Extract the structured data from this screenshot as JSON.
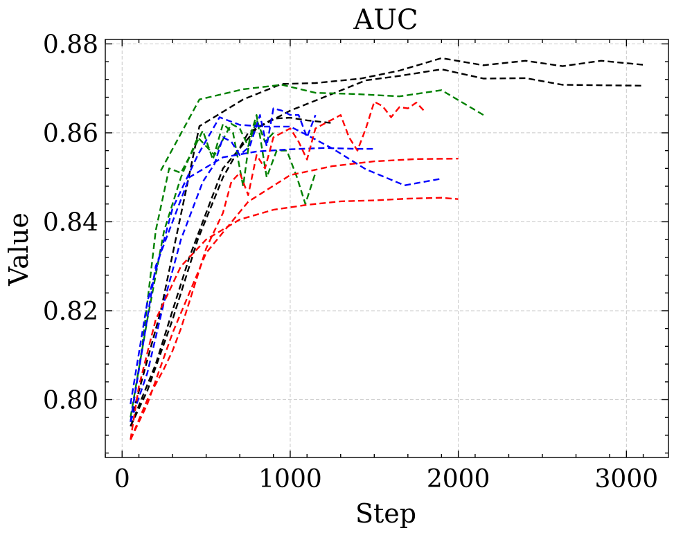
{
  "chart_data": {
    "type": "line",
    "title": "AUC",
    "xlabel": "Step",
    "ylabel": "Value",
    "xlim": [
      -100,
      3250
    ],
    "ylim": [
      0.787,
      0.881
    ],
    "xticks": [
      0,
      1000,
      2000,
      3000
    ],
    "xtick_labels": [
      "0",
      "1000",
      "2000",
      "3000"
    ],
    "yticks": [
      0.8,
      0.82,
      0.84,
      0.86,
      0.88
    ],
    "ytick_labels": [
      "0.80",
      "0.82",
      "0.84",
      "0.86",
      "0.88"
    ],
    "grid": true,
    "linestyle": "dashed",
    "series": [
      {
        "color": "#000000",
        "x": [
          50,
          230,
          460,
          720,
          950,
          1150,
          1420,
          1650,
          1900,
          2150,
          2400,
          2620,
          2850,
          3100
        ],
        "y": [
          0.795,
          0.82,
          0.8615,
          0.8675,
          0.871,
          0.8712,
          0.8722,
          0.874,
          0.8768,
          0.8752,
          0.8762,
          0.875,
          0.8762,
          0.8753
        ]
      },
      {
        "color": "#000000",
        "x": [
          50,
          200,
          400,
          600,
          800,
          1000,
          1200,
          1450,
          1650,
          1900,
          2150,
          2400,
          2620,
          2850,
          3100
        ],
        "y": [
          0.794,
          0.808,
          0.832,
          0.852,
          0.861,
          0.865,
          0.868,
          0.8718,
          0.8728,
          0.8743,
          0.8722,
          0.8723,
          0.8708,
          0.8707,
          0.8706
        ]
      },
      {
        "color": "#000000",
        "x": [
          50,
          150,
          300,
          450,
          600,
          750,
          900,
          1000,
          1100,
          1250
        ],
        "y": [
          0.794,
          0.802,
          0.818,
          0.836,
          0.85,
          0.86,
          0.8632,
          0.8634,
          0.8628,
          0.8622
        ]
      },
      {
        "color": "#008000",
        "x": [
          230,
          460,
          720,
          950,
          1150,
          1400,
          1650,
          1900,
          2150
        ],
        "y": [
          0.8515,
          0.8675,
          0.8698,
          0.8708,
          0.869,
          0.8687,
          0.8682,
          0.8696,
          0.864
        ]
      },
      {
        "color": "#008000",
        "x": [
          50,
          120,
          200,
          280,
          350,
          420,
          480,
          540,
          600,
          660,
          720,
          760,
          800,
          860,
          920,
          980,
          1040,
          1090,
          1150
        ],
        "y": [
          0.795,
          0.812,
          0.838,
          0.852,
          0.851,
          0.856,
          0.8605,
          0.854,
          0.862,
          0.86,
          0.848,
          0.859,
          0.864,
          0.85,
          0.856,
          0.856,
          0.85,
          0.844,
          0.851
        ]
      },
      {
        "color": "#008000",
        "x": [
          50,
          150,
          250,
          350,
          450,
          550,
          650,
          700,
          750,
          800,
          850,
          900
        ],
        "y": [
          0.796,
          0.818,
          0.838,
          0.85,
          0.859,
          0.855,
          0.862,
          0.861,
          0.857,
          0.863,
          0.858,
          0.86
        ]
      },
      {
        "color": "#0000ff",
        "x": [
          50,
          200,
          400,
          600,
          800,
          1000,
          1200,
          1400,
          1500
        ],
        "y": [
          0.795,
          0.83,
          0.85,
          0.8545,
          0.8558,
          0.8563,
          0.8566,
          0.8564,
          0.8564
        ]
      },
      {
        "color": "#0000ff",
        "x": [
          50,
          150,
          300,
          450,
          580,
          700,
          850,
          1000,
          1100,
          1250,
          1450,
          1680,
          1900
        ],
        "y": [
          0.799,
          0.822,
          0.843,
          0.855,
          0.8635,
          0.8618,
          0.8614,
          0.8614,
          0.8595,
          0.8565,
          0.8518,
          0.8482,
          0.8497
        ]
      },
      {
        "color": "#0000ff",
        "x": [
          50,
          150,
          250,
          350,
          480,
          550,
          600,
          650,
          700,
          760,
          820,
          860,
          900,
          950,
          1000,
          1050,
          1100,
          1150
        ],
        "y": [
          0.795,
          0.806,
          0.822,
          0.836,
          0.849,
          0.853,
          0.859,
          0.858,
          0.855,
          0.857,
          0.864,
          0.857,
          0.8655,
          0.865,
          0.864,
          0.864,
          0.859,
          0.864
        ]
      },
      {
        "color": "#ff0000",
        "x": [
          50,
          100,
          200,
          350,
          500,
          700,
          900,
          1100,
          1300,
          1500,
          1700,
          1900,
          2000
        ],
        "y": [
          0.791,
          0.803,
          0.818,
          0.83,
          0.836,
          0.8405,
          0.8427,
          0.8438,
          0.8446,
          0.8448,
          0.8452,
          0.8454,
          0.8451
        ]
      },
      {
        "color": "#ff0000",
        "x": [
          50,
          150,
          300,
          500,
          750,
          1000,
          1250,
          1500,
          1750,
          2000
        ],
        "y": [
          0.791,
          0.799,
          0.815,
          0.833,
          0.8445,
          0.8505,
          0.8525,
          0.8536,
          0.8541,
          0.8542
        ]
      },
      {
        "color": "#ff0000",
        "x": [
          50,
          150,
          250,
          300,
          350,
          450,
          500,
          550,
          600,
          650,
          700,
          750,
          800,
          850,
          900,
          1000,
          1050,
          1100,
          1150,
          1200,
          1300,
          1350,
          1400,
          1450,
          1500,
          1550,
          1600,
          1650,
          1700,
          1750,
          1800
        ],
        "y": [
          0.791,
          0.8,
          0.807,
          0.811,
          0.816,
          0.828,
          0.834,
          0.838,
          0.842,
          0.849,
          0.851,
          0.846,
          0.855,
          0.852,
          0.859,
          0.861,
          0.858,
          0.854,
          0.861,
          0.862,
          0.864,
          0.859,
          0.856,
          0.861,
          0.867,
          0.866,
          0.8635,
          0.8658,
          0.8655,
          0.8668,
          0.8648
        ]
      }
    ]
  }
}
